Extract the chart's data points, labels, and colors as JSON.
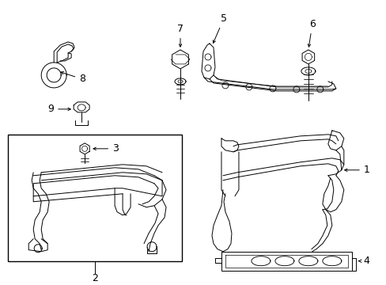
{
  "background_color": "#ffffff",
  "line_color": "#000000",
  "fig_width": 4.89,
  "fig_height": 3.6,
  "dpi": 100,
  "label_fontsize": 9,
  "lw": 0.7
}
